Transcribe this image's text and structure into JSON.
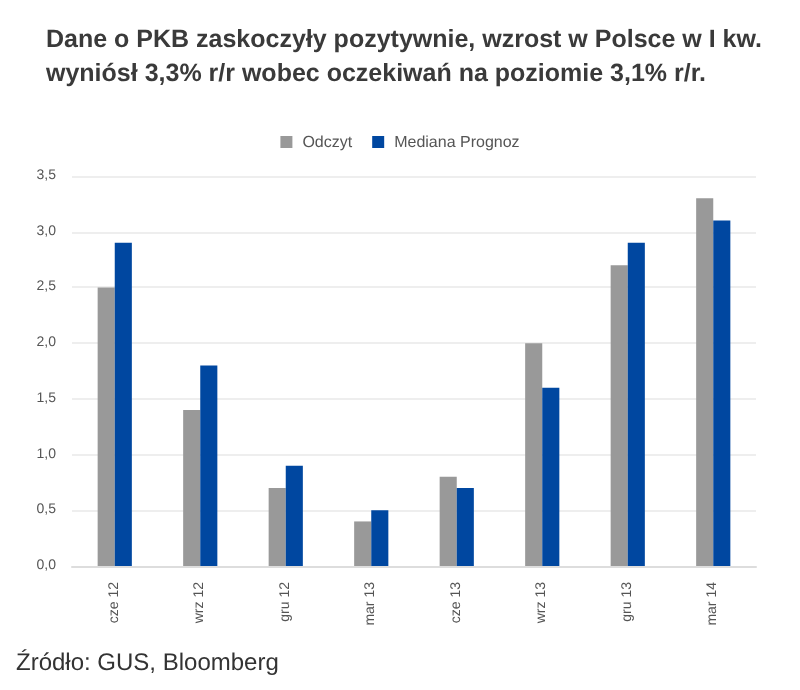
{
  "chart_data": {
    "type": "bar",
    "title": "Dane o PKB zaskoczyły pozytywnie, wzrost w Polsce w I kw.\nwyniósł 3,3% r/r wobec oczekiwań na poziomie 3,1% r/r.",
    "categories": [
      "cze 12",
      "wrz 12",
      "gru 12",
      "mar 13",
      "cze 13",
      "wrz 13",
      "gru 13",
      "mar 14"
    ],
    "series": [
      {
        "name": "Odczyt",
        "color": "#999999",
        "values": [
          2.5,
          1.4,
          0.7,
          0.4,
          0.8,
          2.0,
          2.7,
          3.3
        ]
      },
      {
        "name": "Mediana Prognoz",
        "color": "#0047a0",
        "values": [
          2.9,
          1.8,
          0.9,
          0.5,
          0.7,
          1.6,
          2.9,
          3.1
        ]
      }
    ],
    "ylim": [
      0,
      3.5
    ],
    "yticks": [
      {
        "value": 0,
        "label": "0,0"
      },
      {
        "value": 0.5,
        "label": "0,5"
      },
      {
        "value": 1,
        "label": "1,0"
      },
      {
        "value": 1.5,
        "label": "1,5"
      },
      {
        "value": 2,
        "label": "2,0"
      },
      {
        "value": 2.5,
        "label": "2,5"
      },
      {
        "value": 3,
        "label": "3,0"
      },
      {
        "value": 3.5,
        "label": "3,5"
      }
    ],
    "grid": "y",
    "legend": "top",
    "annotations": [
      "Źródło: GUS, Bloomberg"
    ]
  }
}
